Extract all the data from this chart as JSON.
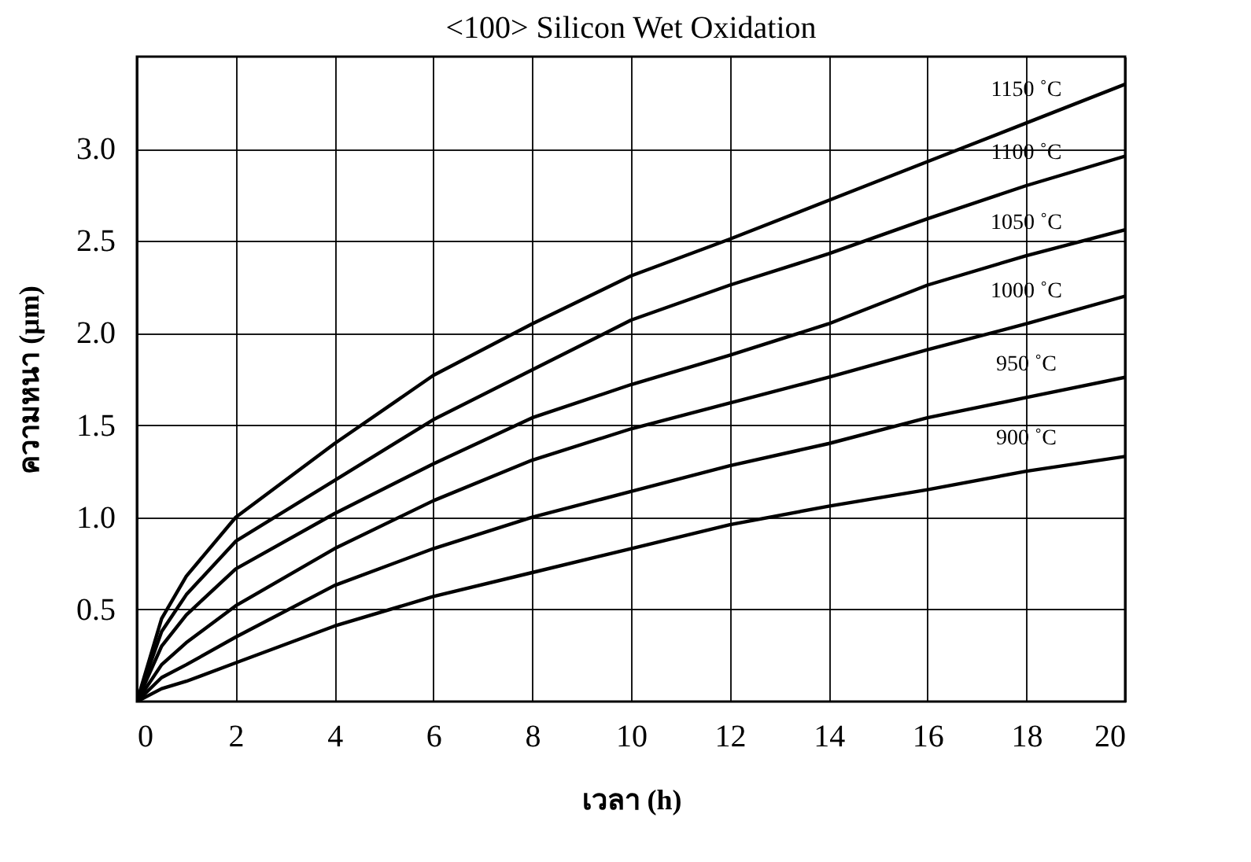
{
  "chart_data": {
    "type": "line",
    "title": "<100> Silicon Wet Oxidation",
    "xlabel": "เวลา (h)",
    "ylabel": "ความหนา (µm)",
    "x": [
      0,
      0.5,
      1,
      2,
      4,
      6,
      8,
      10,
      12,
      14,
      16,
      18,
      20
    ],
    "series": [
      {
        "name": "1150 ˚C",
        "color": "#000000",
        "values": [
          0,
          0.45,
          0.68,
          1.0,
          1.4,
          1.77,
          2.05,
          2.31,
          2.51,
          2.72,
          2.93,
          3.14,
          3.35
        ]
      },
      {
        "name": "1100 ˚C",
        "color": "#000000",
        "values": [
          0,
          0.38,
          0.58,
          0.87,
          1.2,
          1.53,
          1.8,
          2.07,
          2.26,
          2.43,
          2.62,
          2.8,
          2.96
        ]
      },
      {
        "name": "1050 ˚C",
        "color": "#000000",
        "values": [
          0,
          0.3,
          0.47,
          0.72,
          1.02,
          1.29,
          1.54,
          1.72,
          1.88,
          2.05,
          2.26,
          2.42,
          2.56
        ]
      },
      {
        "name": "1000 ˚C",
        "color": "#000000",
        "values": [
          0,
          0.2,
          0.32,
          0.52,
          0.83,
          1.09,
          1.31,
          1.48,
          1.62,
          1.76,
          1.91,
          2.05,
          2.2
        ]
      },
      {
        "name": "950 ˚C",
        "color": "#000000",
        "values": [
          0,
          0.13,
          0.2,
          0.35,
          0.63,
          0.83,
          1.0,
          1.14,
          1.28,
          1.4,
          1.54,
          1.65,
          1.76
        ]
      },
      {
        "name": "900 ˚C",
        "color": "#000000",
        "values": [
          0,
          0.07,
          0.11,
          0.21,
          0.41,
          0.57,
          0.7,
          0.83,
          0.96,
          1.06,
          1.15,
          1.25,
          1.33
        ]
      }
    ],
    "xlim": [
      0,
      20
    ],
    "xticks": [
      0,
      2,
      4,
      6,
      8,
      10,
      12,
      14,
      16,
      18,
      20
    ],
    "ylim": [
      0,
      3.5
    ],
    "yticks": [
      0.5,
      {
        "value": 1,
        "label": "1.0"
      },
      1.5,
      {
        "value": 2,
        "label": "2.0"
      },
      2.5,
      {
        "value": 3,
        "label": "3.0"
      }
    ],
    "grid": true,
    "legend": false,
    "marker": "none",
    "line_style": "solid"
  }
}
